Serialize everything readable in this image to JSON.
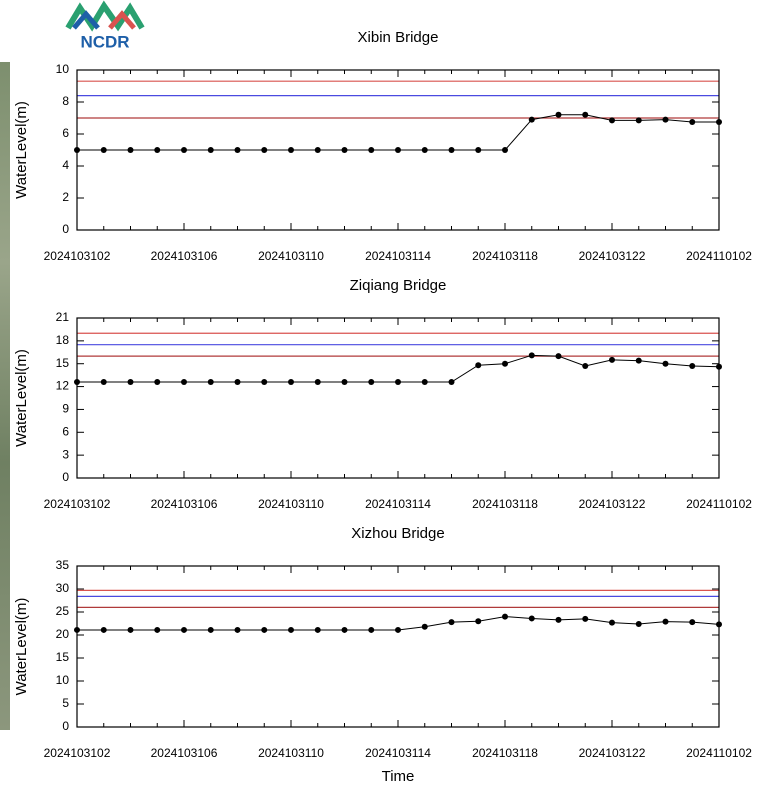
{
  "logo": "NCDR",
  "chart_data": [
    {
      "type": "line",
      "title": "Xibin Bridge",
      "y_label": "WaterLevel(m)",
      "categories": [
        "2024103102",
        null,
        null,
        null,
        "2024103106",
        null,
        null,
        null,
        "2024103110",
        null,
        null,
        null,
        "2024103114",
        null,
        null,
        null,
        "2024103118",
        null,
        null,
        null,
        "2024103122",
        null,
        null,
        null,
        "2024110102"
      ],
      "series": [
        {
          "color": "#000000",
          "values": [
            5.0,
            5.0,
            5.0,
            5.0,
            5.0,
            5.0,
            5.0,
            5.0,
            5.0,
            5.0,
            5.0,
            5.0,
            5.0,
            5.0,
            5.0,
            5.0,
            5.0,
            6.9,
            7.2,
            7.2,
            6.85,
            6.85,
            6.9,
            6.75,
            6.75
          ]
        }
      ],
      "reference_lines": [
        {
          "value": 9.3,
          "color": "#d9534f"
        },
        {
          "value": 8.4,
          "color": "#4a4ae0"
        },
        {
          "value": 7.0,
          "color": "#b03a3a"
        }
      ],
      "ylim": [
        0,
        10
      ],
      "yticks": [
        0,
        2,
        4,
        6,
        8,
        10
      ]
    },
    {
      "type": "line",
      "title": "Ziqiang Bridge",
      "y_label": "WaterLevel(m)",
      "categories": [
        "2024103102",
        null,
        null,
        null,
        "2024103106",
        null,
        null,
        null,
        "2024103110",
        null,
        null,
        null,
        "2024103114",
        null,
        null,
        null,
        "2024103118",
        null,
        null,
        null,
        "2024103122",
        null,
        null,
        null,
        "2024110102"
      ],
      "series": [
        {
          "color": "#000000",
          "values": [
            12.6,
            12.6,
            12.6,
            12.6,
            12.6,
            12.6,
            12.6,
            12.6,
            12.6,
            12.6,
            12.6,
            12.6,
            12.6,
            12.6,
            12.6,
            14.8,
            15.0,
            16.1,
            16.0,
            14.7,
            15.5,
            15.4,
            15.0,
            14.7,
            14.6
          ]
        }
      ],
      "reference_lines": [
        {
          "value": 19.0,
          "color": "#d9534f"
        },
        {
          "value": 17.5,
          "color": "#4a4ae0"
        },
        {
          "value": 16.0,
          "color": "#b03a3a"
        }
      ],
      "ylim": [
        0,
        21
      ],
      "yticks": [
        0,
        3,
        6,
        9,
        12,
        15,
        18,
        21
      ]
    },
    {
      "type": "line",
      "title": "Xizhou Bridge",
      "y_label": "WaterLevel(m)",
      "x_label": "Time",
      "categories": [
        "2024103102",
        null,
        null,
        null,
        "2024103106",
        null,
        null,
        null,
        "2024103110",
        null,
        null,
        null,
        "2024103114",
        null,
        null,
        null,
        "2024103118",
        null,
        null,
        null,
        "2024103122",
        null,
        null,
        null,
        "2024110102"
      ],
      "series": [
        {
          "color": "#000000",
          "values": [
            21.1,
            21.1,
            21.1,
            21.1,
            21.1,
            21.1,
            21.1,
            21.1,
            21.1,
            21.1,
            21.1,
            21.1,
            21.1,
            21.8,
            22.8,
            23.0,
            24.0,
            23.6,
            23.3,
            23.5,
            22.7,
            22.4,
            22.9,
            22.8,
            22.3
          ]
        }
      ],
      "reference_lines": [
        {
          "value": 29.7,
          "color": "#d9534f"
        },
        {
          "value": 28.4,
          "color": "#4a4ae0"
        },
        {
          "value": 26.0,
          "color": "#b03a3a"
        }
      ],
      "ylim": [
        0,
        35
      ],
      "yticks": [
        0,
        5,
        10,
        15,
        20,
        25,
        30,
        35
      ]
    }
  ]
}
